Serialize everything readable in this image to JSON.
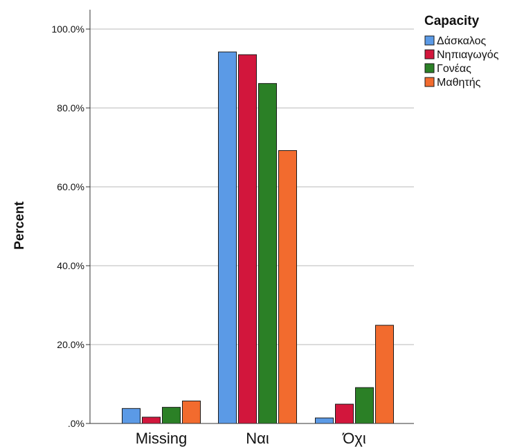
{
  "chart_data": {
    "type": "bar",
    "ylabel": "Percent",
    "xlabel": "",
    "categories": [
      "Missing",
      "Ναι",
      "Όχι"
    ],
    "ylim": [
      0,
      105
    ],
    "yticks": [
      0,
      20,
      40,
      60,
      80,
      100
    ],
    "ytick_labels": [
      ".0%",
      "20.0%",
      "40.0%",
      "60.0%",
      "80.0%",
      "100.0%"
    ],
    "grid": true,
    "legend": {
      "title": "Capacity",
      "placement": "top-right"
    },
    "series": [
      {
        "name": "Δάσκαλος",
        "color": "#5b9ae6",
        "values": [
          3.8,
          94.2,
          1.4
        ]
      },
      {
        "name": "Νηπιαγωγός",
        "color": "#d2163c",
        "values": [
          1.6,
          93.5,
          4.9
        ]
      },
      {
        "name": "Γονέας",
        "color": "#2b8026",
        "values": [
          4.1,
          86.2,
          9.1
        ]
      },
      {
        "name": "Μαθητής",
        "color": "#f26b2e",
        "values": [
          5.7,
          69.2,
          24.9
        ]
      }
    ]
  }
}
